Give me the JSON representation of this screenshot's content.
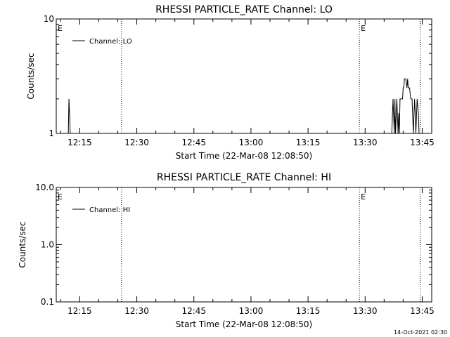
{
  "footer": {
    "timestamp": "14-Oct-2021 02:30"
  },
  "chart_data": [
    {
      "type": "line",
      "title": "RHESSI PARTICLE_RATE Channel: LO",
      "xlabel": "Start Time (22-Mar-08 12:08:50)",
      "ylabel": "Counts/sec",
      "yscale": "log",
      "xlim": [
        "12:08:50",
        "13:47:30"
      ],
      "ylim": [
        1,
        10
      ],
      "x_ticks": [
        "12:15",
        "12:30",
        "12:45",
        "13:00",
        "13:15",
        "13:30",
        "13:45"
      ],
      "y_ticks": [
        "1",
        "10"
      ],
      "legend": {
        "placement": "top-left",
        "entries": [
          "Channel: LO"
        ]
      },
      "event_markers": [
        {
          "time": "12:08:50",
          "label": "E"
        },
        {
          "time": "12:26:00",
          "label": ""
        },
        {
          "time": "13:28:30",
          "label": "E"
        },
        {
          "time": "13:44:30",
          "label": ""
        }
      ],
      "series": [
        {
          "name": "Channel: LO",
          "x": [
            "12:11:40",
            "12:12:00",
            "12:12:10",
            "12:12:20",
            "12:12:30",
            "12:12:40",
            "12:12:50",
            "13:37:00",
            "13:37:20",
            "13:37:40",
            "13:37:50",
            "13:38:00",
            "13:38:20",
            "13:38:40",
            "13:38:50",
            "13:39:00",
            "13:39:10",
            "13:39:30",
            "13:39:50",
            "13:40:00",
            "13:40:10",
            "13:40:20",
            "13:40:40",
            "13:41:00",
            "13:41:10",
            "13:41:20",
            "13:41:40",
            "13:42:00",
            "13:42:10",
            "13:42:20",
            "13:42:40",
            "13:43:00",
            "13:43:10",
            "13:43:20",
            "13:43:40",
            "13:44:00",
            "13:44:10",
            "13:44:20",
            "13:44:40"
          ],
          "y": [
            1,
            1,
            2,
            1.5,
            1,
            1,
            1,
            1,
            2,
            1,
            2,
            1,
            2,
            1,
            1.5,
            1,
            2,
            2,
            2,
            2.5,
            2.5,
            3,
            3,
            2.5,
            3,
            2.5,
            2.5,
            2,
            2,
            2,
            1,
            2,
            1.5,
            1,
            2,
            1.5,
            1,
            1,
            1
          ]
        }
      ]
    },
    {
      "type": "line",
      "title": "RHESSI PARTICLE_RATE Channel: HI",
      "xlabel": "Start Time (22-Mar-08 12:08:50)",
      "ylabel": "Counts/sec",
      "yscale": "log",
      "xlim": [
        "12:08:50",
        "13:47:30"
      ],
      "ylim": [
        0.1,
        10
      ],
      "x_ticks": [
        "12:15",
        "12:30",
        "12:45",
        "13:00",
        "13:15",
        "13:30",
        "13:45"
      ],
      "y_ticks": [
        "0.1",
        "1.0",
        "10.0"
      ],
      "legend": {
        "placement": "top-left",
        "entries": [
          "Channel: HI"
        ]
      },
      "event_markers": [
        {
          "time": "12:08:50",
          "label": "E"
        },
        {
          "time": "12:26:00",
          "label": ""
        },
        {
          "time": "13:28:30",
          "label": "E"
        },
        {
          "time": "13:44:30",
          "label": ""
        }
      ],
      "series": [
        {
          "name": "Channel: HI",
          "x": [],
          "y": []
        }
      ]
    }
  ]
}
